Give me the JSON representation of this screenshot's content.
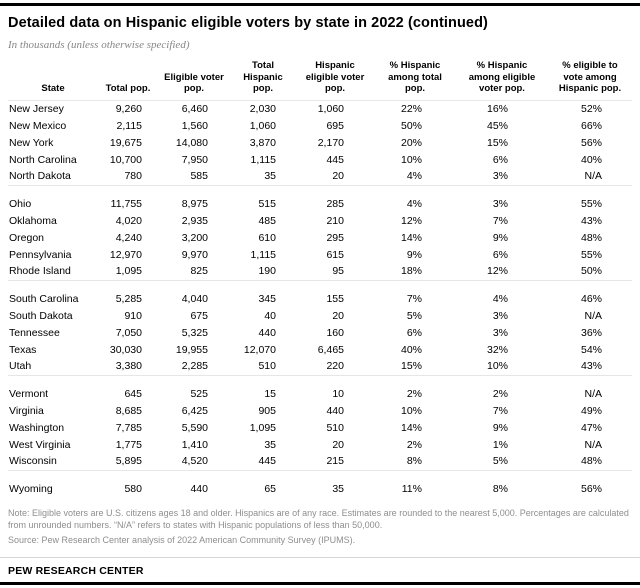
{
  "header": {
    "title": "Detailed data on Hispanic eligible voters by state in 2022 (continued)",
    "subtitle": "In thousands (unless otherwise specified)"
  },
  "chart_data": {
    "type": "table",
    "columns": [
      "State",
      "Total pop.",
      "Eligible voter pop.",
      "Total Hispanic pop.",
      "Hispanic eligible voter pop.",
      "% Hispanic among total pop.",
      "% Hispanic among eligible voter pop.",
      "% eligible to vote among Hispanic pop."
    ],
    "groups": [
      [
        [
          "New Jersey",
          "9,260",
          "6,460",
          "2,030",
          "1,060",
          "22%",
          "16%",
          "52%"
        ],
        [
          "New Mexico",
          "2,115",
          "1,560",
          "1,060",
          "695",
          "50%",
          "45%",
          "66%"
        ],
        [
          "New York",
          "19,675",
          "14,080",
          "3,870",
          "2,170",
          "20%",
          "15%",
          "56%"
        ],
        [
          "North Carolina",
          "10,700",
          "7,950",
          "1,115",
          "445",
          "10%",
          "6%",
          "40%"
        ],
        [
          "North Dakota",
          "780",
          "585",
          "35",
          "20",
          "4%",
          "3%",
          "N/A"
        ]
      ],
      [
        [
          "Ohio",
          "11,755",
          "8,975",
          "515",
          "285",
          "4%",
          "3%",
          "55%"
        ],
        [
          "Oklahoma",
          "4,020",
          "2,935",
          "485",
          "210",
          "12%",
          "7%",
          "43%"
        ],
        [
          "Oregon",
          "4,240",
          "3,200",
          "610",
          "295",
          "14%",
          "9%",
          "48%"
        ],
        [
          "Pennsylvania",
          "12,970",
          "9,970",
          "1,115",
          "615",
          "9%",
          "6%",
          "55%"
        ],
        [
          "Rhode Island",
          "1,095",
          "825",
          "190",
          "95",
          "18%",
          "12%",
          "50%"
        ]
      ],
      [
        [
          "South Carolina",
          "5,285",
          "4,040",
          "345",
          "155",
          "7%",
          "4%",
          "46%"
        ],
        [
          "South Dakota",
          "910",
          "675",
          "40",
          "20",
          "5%",
          "3%",
          "N/A"
        ],
        [
          "Tennessee",
          "7,050",
          "5,325",
          "440",
          "160",
          "6%",
          "3%",
          "36%"
        ],
        [
          "Texas",
          "30,030",
          "19,955",
          "12,070",
          "6,465",
          "40%",
          "32%",
          "54%"
        ],
        [
          "Utah",
          "3,380",
          "2,285",
          "510",
          "220",
          "15%",
          "10%",
          "43%"
        ]
      ],
      [
        [
          "Vermont",
          "645",
          "525",
          "15",
          "10",
          "2%",
          "2%",
          "N/A"
        ],
        [
          "Virginia",
          "8,685",
          "6,425",
          "905",
          "440",
          "10%",
          "7%",
          "49%"
        ],
        [
          "Washington",
          "7,785",
          "5,590",
          "1,095",
          "510",
          "14%",
          "9%",
          "47%"
        ],
        [
          "West Virginia",
          "1,775",
          "1,410",
          "35",
          "20",
          "2%",
          "1%",
          "N/A"
        ],
        [
          "Wisconsin",
          "5,895",
          "4,520",
          "445",
          "215",
          "8%",
          "5%",
          "48%"
        ]
      ],
      [
        [
          "Wyoming",
          "580",
          "440",
          "65",
          "35",
          "11%",
          "8%",
          "56%"
        ]
      ]
    ]
  },
  "footer": {
    "note": "Note: Eligible voters are U.S. citizens ages 18 and older. Hispanics are of any race. Estimates are rounded to the nearest 5,000. Percentages are calculated from unrounded numbers. “N/A” refers to states with Hispanic populations of less than 50,000.",
    "source": "Source: Pew Research Center analysis of 2022 American Community Survey (IPUMS).",
    "brand": "PEW RESEARCH CENTER"
  }
}
